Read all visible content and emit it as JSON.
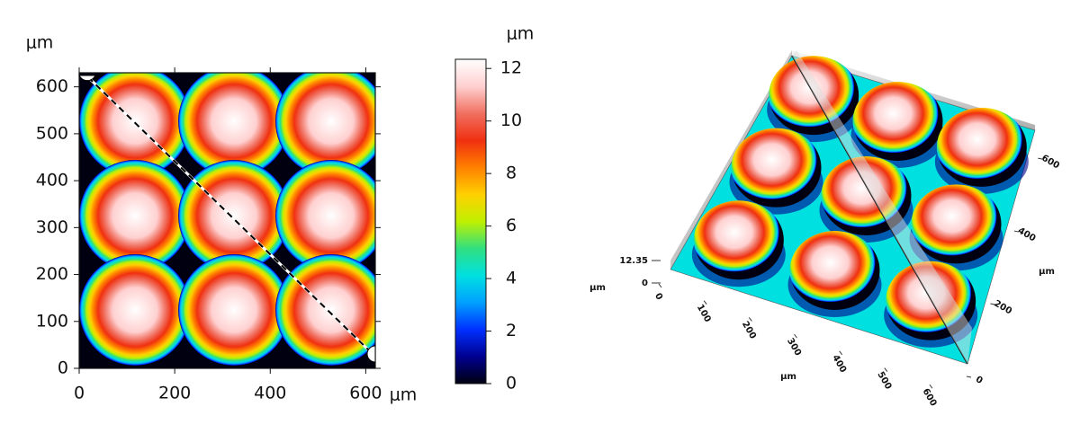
{
  "chart_data": [
    {
      "type": "heatmap",
      "xlabel": "μm",
      "ylabel": "μm",
      "xlim": [
        0,
        620
      ],
      "ylim": [
        0,
        630
      ],
      "xticks": [
        0,
        200,
        400,
        600
      ],
      "yticks": [
        0,
        100,
        200,
        300,
        400,
        500,
        600
      ],
      "colorbar": {
        "label": "μm",
        "lim": [
          0,
          12.35
        ],
        "ticks": [
          0,
          2,
          4,
          6,
          8,
          10,
          12
        ]
      },
      "colormap": [
        "#000010",
        "#000090",
        "#0030ff",
        "#00a0ff",
        "#00e0e0",
        "#30e080",
        "#c0f000",
        "#ffd000",
        "#ff8000",
        "#f03010",
        "#f07060",
        "#ffd0d0",
        "#ffffff"
      ]
    },
    {
      "type": "surface3d",
      "xlabel": "μm",
      "ylabel": "μm",
      "zlabel": "μm",
      "xlim": [
        0,
        620
      ],
      "ylim": [
        0,
        620
      ],
      "zlim": [
        0,
        12.35
      ],
      "xticks": [
        0,
        100,
        200,
        300,
        400,
        500,
        600
      ],
      "yticks": [
        0,
        200,
        400,
        600
      ],
      "zticks": [
        0,
        12.35
      ]
    }
  ]
}
